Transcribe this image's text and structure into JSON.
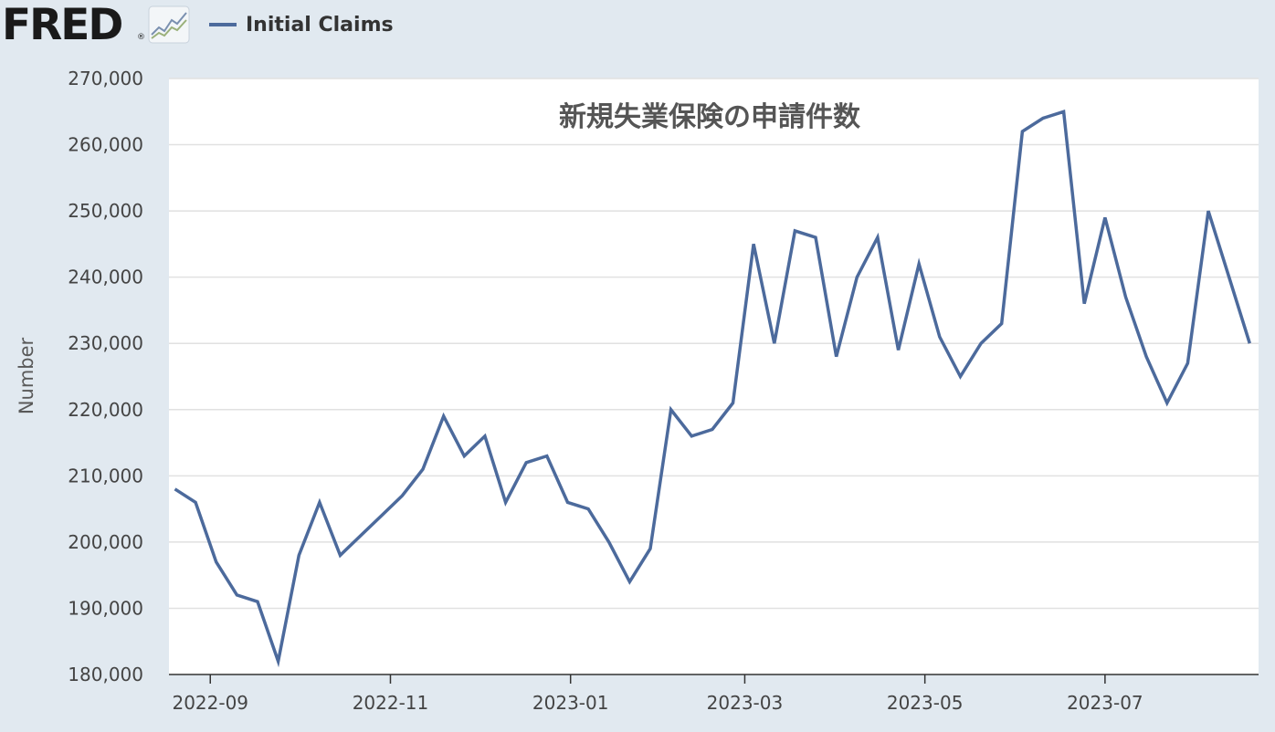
{
  "header": {
    "logo_text": "FRED",
    "logo_mark": "®",
    "logo_icon": "line-graph-icon"
  },
  "chart_data": {
    "type": "line",
    "title": "新規失業保険の申請件数",
    "xlabel": "",
    "ylabel": "Number",
    "ylim": [
      180000,
      270000
    ],
    "yticks": [
      180000,
      190000,
      200000,
      210000,
      220000,
      230000,
      240000,
      250000,
      260000,
      270000
    ],
    "ytick_labels": [
      "180,000",
      "190,000",
      "200,000",
      "210,000",
      "220,000",
      "230,000",
      "240,000",
      "250,000",
      "260,000",
      "270,000"
    ],
    "xlim": [
      "2022-08-18",
      "2023-08-22"
    ],
    "xticks": [
      "2022-09-01",
      "2022-11-01",
      "2023-01-01",
      "2023-03-01",
      "2023-05-01",
      "2023-07-01"
    ],
    "xtick_labels": [
      "2022-09",
      "2022-11",
      "2023-01",
      "2023-03",
      "2023-05",
      "2023-07"
    ],
    "grid": true,
    "legend_position": "top-left",
    "colors": {
      "line": "#4c6a9c",
      "plot_bg": "#ffffff",
      "page_bg": "#e1e9f0",
      "grid": "#e1e1e1"
    },
    "series": [
      {
        "name": "Initial Claims",
        "x": [
          "2022-08-20",
          "2022-08-27",
          "2022-09-03",
          "2022-09-10",
          "2022-09-17",
          "2022-09-24",
          "2022-10-01",
          "2022-10-08",
          "2022-10-15",
          "2022-10-22",
          "2022-10-29",
          "2022-11-05",
          "2022-11-12",
          "2022-11-19",
          "2022-11-26",
          "2022-12-03",
          "2022-12-10",
          "2022-12-17",
          "2022-12-24",
          "2022-12-31",
          "2023-01-07",
          "2023-01-14",
          "2023-01-21",
          "2023-01-28",
          "2023-02-04",
          "2023-02-11",
          "2023-02-18",
          "2023-02-25",
          "2023-03-04",
          "2023-03-11",
          "2023-03-18",
          "2023-03-25",
          "2023-04-01",
          "2023-04-08",
          "2023-04-15",
          "2023-04-22",
          "2023-04-29",
          "2023-05-06",
          "2023-05-13",
          "2023-05-20",
          "2023-05-27",
          "2023-06-03",
          "2023-06-10",
          "2023-06-17",
          "2023-06-24",
          "2023-07-01",
          "2023-07-08",
          "2023-07-15",
          "2023-07-22",
          "2023-07-29",
          "2023-08-05",
          "2023-08-12",
          "2023-08-19"
        ],
        "values": [
          208000,
          206000,
          197000,
          192000,
          191000,
          182000,
          198000,
          206000,
          198000,
          201000,
          204000,
          207000,
          211000,
          219000,
          213000,
          216000,
          206000,
          212000,
          213000,
          206000,
          205000,
          200000,
          194000,
          199000,
          220000,
          216000,
          217000,
          221000,
          245000,
          230000,
          247000,
          246000,
          228000,
          240000,
          246000,
          229000,
          242000,
          231000,
          225000,
          230000,
          233000,
          262000,
          264000,
          265000,
          236000,
          249000,
          237000,
          228000,
          221000,
          227000,
          250000,
          240000,
          230000
        ]
      }
    ]
  }
}
